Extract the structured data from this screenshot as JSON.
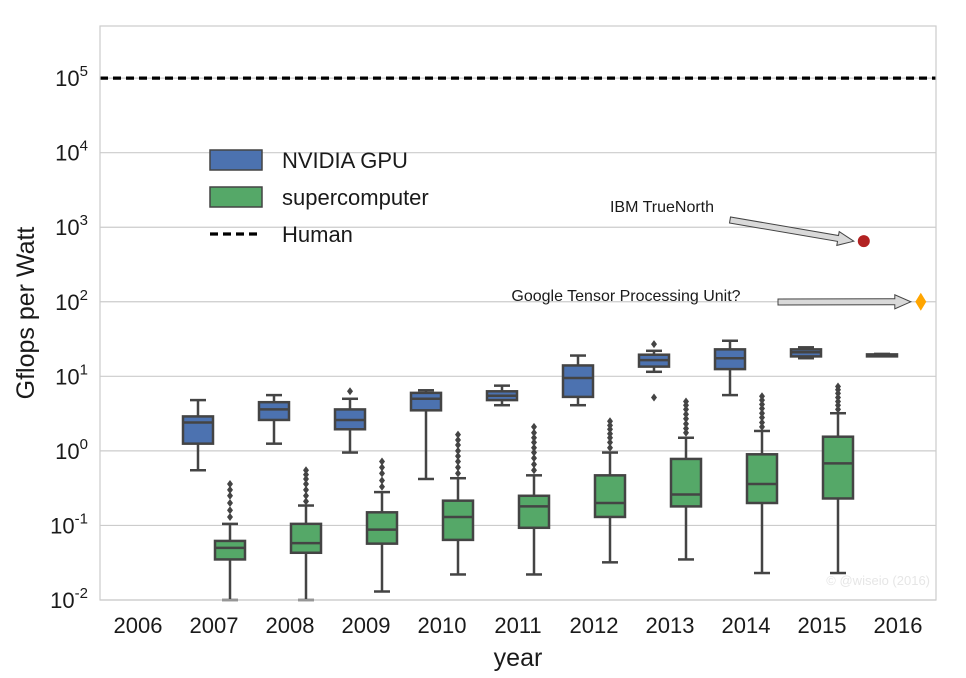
{
  "chart_data": {
    "type": "box",
    "xlabel": "year",
    "ylabel": "Gflops per Watt",
    "yscale": "log",
    "ylim": [
      0.01,
      500000
    ],
    "grid": "horizontal",
    "categories": [
      "2006",
      "2007",
      "2008",
      "2009",
      "2010",
      "2011",
      "2012",
      "2013",
      "2014",
      "2015",
      "2016"
    ],
    "yticks": [
      {
        "value": 0.01,
        "base": "10",
        "exp": "-2"
      },
      {
        "value": 0.1,
        "base": "10",
        "exp": "-1"
      },
      {
        "value": 1,
        "base": "10",
        "exp": "0"
      },
      {
        "value": 10,
        "base": "10",
        "exp": "1"
      },
      {
        "value": 100,
        "base": "10",
        "exp": "2"
      },
      {
        "value": 1000,
        "base": "10",
        "exp": "3"
      },
      {
        "value": 10000,
        "base": "10",
        "exp": "4"
      },
      {
        "value": 100000,
        "base": "10",
        "exp": "5"
      }
    ],
    "series": [
      {
        "name": "NVIDIA GPU",
        "color": "#4c72b0",
        "boxes": [
          {
            "year": "2007",
            "whislo": 0.55,
            "q1": 1.25,
            "med": 2.4,
            "q3": 2.9,
            "whishi": 4.8,
            "fliers": []
          },
          {
            "year": "2008",
            "whislo": 1.25,
            "q1": 2.6,
            "med": 3.6,
            "q3": 4.5,
            "whishi": 5.6,
            "fliers": []
          },
          {
            "year": "2009",
            "whislo": 0.95,
            "q1": 1.95,
            "med": 2.6,
            "q3": 3.6,
            "whishi": 5.0,
            "fliers": [
              6.3
            ]
          },
          {
            "year": "2010",
            "whislo": 0.42,
            "q1": 3.5,
            "med": 5.0,
            "q3": 6.0,
            "whishi": 6.5,
            "fliers": []
          },
          {
            "year": "2011",
            "whislo": 4.1,
            "q1": 4.8,
            "med": 5.5,
            "q3": 6.3,
            "whishi": 7.5,
            "fliers": []
          },
          {
            "year": "2012",
            "whislo": 4.1,
            "q1": 5.3,
            "med": 9.5,
            "q3": 14.0,
            "whishi": 19.0,
            "fliers": []
          },
          {
            "year": "2013",
            "whislo": 11.5,
            "q1": 13.5,
            "med": 16.5,
            "q3": 19.5,
            "whishi": 22.0,
            "fliers": [
              27.0,
              5.2
            ]
          },
          {
            "year": "2014",
            "whislo": 5.6,
            "q1": 12.5,
            "med": 17.5,
            "q3": 23.0,
            "whishi": 30.0,
            "fliers": []
          },
          {
            "year": "2015",
            "whislo": 17.5,
            "q1": 18.5,
            "med": 21.0,
            "q3": 23.0,
            "whishi": 24.5,
            "fliers": []
          },
          {
            "year": "2016",
            "whislo": 19.0,
            "q1": 19.3,
            "med": 19.5,
            "q3": 19.7,
            "whishi": 20.0,
            "fliers": []
          }
        ]
      },
      {
        "name": "supercomputer",
        "color": "#55a868",
        "boxes": [
          {
            "year": "2007",
            "whislo": 0.01,
            "q1": 0.035,
            "med": 0.05,
            "q3": 0.062,
            "whishi": 0.105,
            "fliers": [
              0.13,
              0.16,
              0.2,
              0.25,
              0.3,
              0.36
            ]
          },
          {
            "year": "2008",
            "whislo": 0.01,
            "q1": 0.043,
            "med": 0.058,
            "q3": 0.105,
            "whishi": 0.185,
            "fliers": [
              0.21,
              0.25,
              0.3,
              0.36,
              0.42,
              0.48,
              0.55
            ]
          },
          {
            "year": "2009",
            "whislo": 0.013,
            "q1": 0.057,
            "med": 0.088,
            "q3": 0.15,
            "whishi": 0.28,
            "fliers": [
              0.33,
              0.4,
              0.5,
              0.6,
              0.72
            ]
          },
          {
            "year": "2010",
            "whislo": 0.022,
            "q1": 0.064,
            "med": 0.13,
            "q3": 0.215,
            "whishi": 0.43,
            "fliers": [
              0.5,
              0.6,
              0.72,
              0.85,
              1.0,
              1.2,
              1.4,
              1.65
            ]
          },
          {
            "year": "2011",
            "whislo": 0.022,
            "q1": 0.093,
            "med": 0.18,
            "q3": 0.25,
            "whishi": 0.47,
            "fliers": [
              0.55,
              0.66,
              0.8,
              0.95,
              1.1,
              1.3,
              1.5,
              1.75,
              2.1
            ]
          },
          {
            "year": "2012",
            "whislo": 0.032,
            "q1": 0.13,
            "med": 0.2,
            "q3": 0.47,
            "whishi": 0.95,
            "fliers": [
              1.1,
              1.3,
              1.5,
              1.7,
              1.95,
              2.2,
              2.5
            ]
          },
          {
            "year": "2013",
            "whislo": 0.035,
            "q1": 0.18,
            "med": 0.26,
            "q3": 0.78,
            "whishi": 1.5,
            "fliers": [
              1.75,
              2.0,
              2.3,
              2.7,
              3.1,
              3.6,
              4.1,
              4.6
            ]
          },
          {
            "year": "2014",
            "whislo": 0.023,
            "q1": 0.2,
            "med": 0.36,
            "q3": 0.9,
            "whishi": 1.85,
            "fliers": [
              2.1,
              2.4,
              2.8,
              3.2,
              3.7,
              4.2,
              4.8,
              5.4
            ]
          },
          {
            "year": "2015",
            "whislo": 0.023,
            "q1": 0.23,
            "med": 0.68,
            "q3": 1.55,
            "whishi": 3.2,
            "fliers": [
              3.6,
              4.1,
              4.6,
              5.2,
              5.9,
              6.6,
              7.3
            ]
          }
        ]
      }
    ],
    "reference_line": {
      "name": "Human",
      "value": 100000,
      "style": "dashed",
      "color": "#000000"
    },
    "points": [
      {
        "label": "IBM TrueNorth",
        "x": 2015.55,
        "y": 650,
        "color": "#b22222",
        "marker": "circle"
      },
      {
        "label": "Google Tensor Processing Unit?",
        "x": 2016.3,
        "y": 100,
        "color": "#ffa500",
        "marker": "diamond"
      }
    ],
    "legend": {
      "placement": "upper-left",
      "entries": [
        {
          "label": "NVIDIA GPU",
          "type": "patch",
          "color": "#4c72b0"
        },
        {
          "label": "supercomputer",
          "type": "patch",
          "color": "#55a868"
        },
        {
          "label": "Human",
          "type": "dashed-line",
          "color": "#000000"
        }
      ]
    },
    "watermark": "© @wiseio (2016)"
  }
}
